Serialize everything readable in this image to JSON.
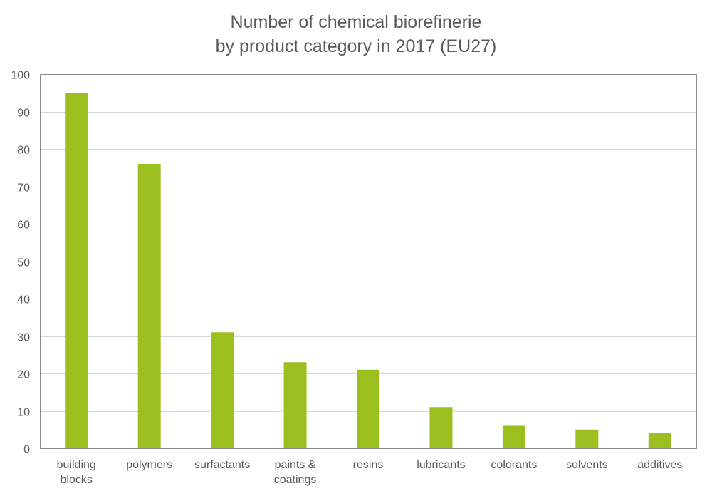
{
  "chart_data": {
    "type": "bar",
    "title": [
      "Number of chemical biorefinerie",
      "by product category in 2017 (EU27)"
    ],
    "categories": [
      [
        "building",
        "blocks"
      ],
      [
        "polymers"
      ],
      [
        "surfactants"
      ],
      [
        "paints &",
        "coatings"
      ],
      [
        "resins"
      ],
      [
        "lubricants"
      ],
      [
        "colorants"
      ],
      [
        "solvents"
      ],
      [
        "additives"
      ]
    ],
    "values": [
      95,
      76,
      31,
      23,
      21,
      11,
      6,
      5,
      4
    ],
    "ylim": [
      0,
      100
    ],
    "yticks": [
      0,
      10,
      20,
      30,
      40,
      50,
      60,
      70,
      80,
      90,
      100
    ],
    "grid": true,
    "bar_color": "#9bbf1f",
    "grid_color": "#d9d9d9",
    "axis_color": "#8c8c8c"
  }
}
